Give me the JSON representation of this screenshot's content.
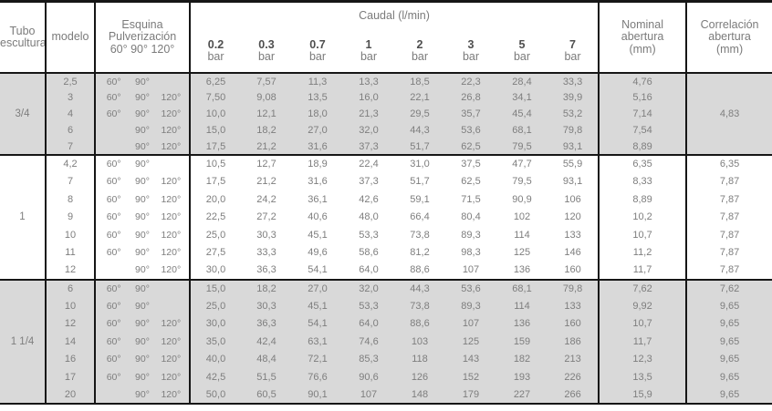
{
  "colors": {
    "band": "#d9d9d9",
    "rule": "#161616",
    "text": "#7e7e7e",
    "text_bold": "#4e4e4e"
  },
  "table": {
    "columns": {
      "tubo_line1": "Tubo",
      "tubo_line2": "escultura",
      "modelo": "modelo",
      "esquina_line1": "Esquina",
      "esquina_line2": "Pulverización",
      "esquina_line3": "60° 90° 120°",
      "caudal_title": "Caudal (l/min)",
      "pressure_unit": "bar",
      "pressures": [
        "0.2",
        "0.3",
        "0.7",
        "1",
        "2",
        "3",
        "5",
        "7"
      ],
      "nominal_line1": "Nominal",
      "nominal_line2": "abertura",
      "nominal_line3": "(mm)",
      "correlacion_line1": "Correlación",
      "correlacion_line2": "abertura",
      "correlacion_line3": "(mm)"
    },
    "groups": [
      {
        "tubo": "3/4",
        "correlacion_merged": "4,83",
        "rows": [
          {
            "modelo": "2,5",
            "angles": [
              "60°",
              "90°",
              ""
            ],
            "caudal": [
              "6,25",
              "7,57",
              "11,3",
              "13,3",
              "18,5",
              "22,3",
              "28,4",
              "33,3"
            ],
            "nominal": "4,76"
          },
          {
            "modelo": "3",
            "angles": [
              "60°",
              "90°",
              "120°"
            ],
            "caudal": [
              "7,50",
              "9,08",
              "13,5",
              "16,0",
              "22,1",
              "26,8",
              "34,1",
              "39,9"
            ],
            "nominal": "5,16"
          },
          {
            "modelo": "4",
            "angles": [
              "60°",
              "90°",
              "120°"
            ],
            "caudal": [
              "10,0",
              "12,1",
              "18,0",
              "21,3",
              "29,5",
              "35,7",
              "45,4",
              "53,2"
            ],
            "nominal": "7,14"
          },
          {
            "modelo": "6",
            "angles": [
              "",
              "90°",
              "120°"
            ],
            "caudal": [
              "15,0",
              "18,2",
              "27,0",
              "32,0",
              "44,3",
              "53,6",
              "68,1",
              "79,8"
            ],
            "nominal": "7,54"
          },
          {
            "modelo": "7",
            "angles": [
              "",
              "90°",
              "120°"
            ],
            "caudal": [
              "17,5",
              "21,2",
              "31,6",
              "37,3",
              "51,7",
              "62,5",
              "79,5",
              "93,1"
            ],
            "nominal": "8,89"
          }
        ]
      },
      {
        "tubo": "1",
        "correlacion_merged": null,
        "rows": [
          {
            "modelo": "4,2",
            "angles": [
              "60°",
              "90°",
              ""
            ],
            "caudal": [
              "10,5",
              "12,7",
              "18,9",
              "22,4",
              "31,0",
              "37,5",
              "47,7",
              "55,9"
            ],
            "nominal": "6,35",
            "correlacion": "6,35"
          },
          {
            "modelo": "7",
            "angles": [
              "60°",
              "90°",
              "120°"
            ],
            "caudal": [
              "17,5",
              "21,2",
              "31,6",
              "37,3",
              "51,7",
              "62,5",
              "79,5",
              "93,1"
            ],
            "nominal": "8,33",
            "correlacion": "7,87"
          },
          {
            "modelo": "8",
            "angles": [
              "60°",
              "90°",
              "120°"
            ],
            "caudal": [
              "20,0",
              "24,2",
              "36,1",
              "42,6",
              "59,1",
              "71,5",
              "90,9",
              "106"
            ],
            "nominal": "8,89",
            "correlacion": "7,87"
          },
          {
            "modelo": "9",
            "angles": [
              "60°",
              "90°",
              "120°"
            ],
            "caudal": [
              "22,5",
              "27,2",
              "40,6",
              "48,0",
              "66,4",
              "80,4",
              "102",
              "120"
            ],
            "nominal": "10,2",
            "correlacion": "7,87"
          },
          {
            "modelo": "10",
            "angles": [
              "60°",
              "90°",
              "120°"
            ],
            "caudal": [
              "25,0",
              "30,3",
              "45,1",
              "53,3",
              "73,8",
              "89,3",
              "114",
              "133"
            ],
            "nominal": "10,7",
            "correlacion": "7,87"
          },
          {
            "modelo": "11",
            "angles": [
              "60°",
              "90°",
              "120°"
            ],
            "caudal": [
              "27,5",
              "33,3",
              "49,6",
              "58,6",
              "81,2",
              "98,3",
              "125",
              "146"
            ],
            "nominal": "11,2",
            "correlacion": "7,87"
          },
          {
            "modelo": "12",
            "angles": [
              "",
              "90°",
              "120°"
            ],
            "caudal": [
              "30,0",
              "36,3",
              "54,1",
              "64,0",
              "88,6",
              "107",
              "136",
              "160"
            ],
            "nominal": "11,7",
            "correlacion": "7,87"
          }
        ]
      },
      {
        "tubo": "1 1/4",
        "correlacion_merged": null,
        "rows": [
          {
            "modelo": "6",
            "angles": [
              "60°",
              "90°",
              ""
            ],
            "caudal": [
              "15,0",
              "18,2",
              "27,0",
              "32,0",
              "44,3",
              "53,6",
              "68,1",
              "79,8"
            ],
            "nominal": "7,62",
            "correlacion": "7,62"
          },
          {
            "modelo": "10",
            "angles": [
              "60°",
              "90°",
              ""
            ],
            "caudal": [
              "25,0",
              "30,3",
              "45,1",
              "53,3",
              "73,8",
              "89,3",
              "114",
              "133"
            ],
            "nominal": "9,92",
            "correlacion": "9,65"
          },
          {
            "modelo": "12",
            "angles": [
              "60°",
              "90°",
              "120°"
            ],
            "caudal": [
              "30,0",
              "36,3",
              "54,1",
              "64,0",
              "88,6",
              "107",
              "136",
              "160"
            ],
            "nominal": "10,7",
            "correlacion": "9,65"
          },
          {
            "modelo": "14",
            "angles": [
              "60°",
              "90°",
              "120°"
            ],
            "caudal": [
              "35,0",
              "42,4",
              "63,1",
              "74,6",
              "103",
              "125",
              "159",
              "186"
            ],
            "nominal": "11,7",
            "correlacion": "9,65"
          },
          {
            "modelo": "16",
            "angles": [
              "60°",
              "90°",
              "120°"
            ],
            "caudal": [
              "40,0",
              "48,4",
              "72,1",
              "85,3",
              "118",
              "143",
              "182",
              "213"
            ],
            "nominal": "12,3",
            "correlacion": "9,65"
          },
          {
            "modelo": "17",
            "angles": [
              "60°",
              "90°",
              "120°"
            ],
            "caudal": [
              "42,5",
              "51,5",
              "76,6",
              "90,6",
              "126",
              "152",
              "193",
              "226"
            ],
            "nominal": "13,5",
            "correlacion": "9,65"
          },
          {
            "modelo": "20",
            "angles": [
              "",
              "90°",
              "120°"
            ],
            "caudal": [
              "50,0",
              "60,5",
              "90,1",
              "107",
              "148",
              "179",
              "227",
              "266"
            ],
            "nominal": "15,9",
            "correlacion": "9,65"
          }
        ]
      }
    ]
  }
}
